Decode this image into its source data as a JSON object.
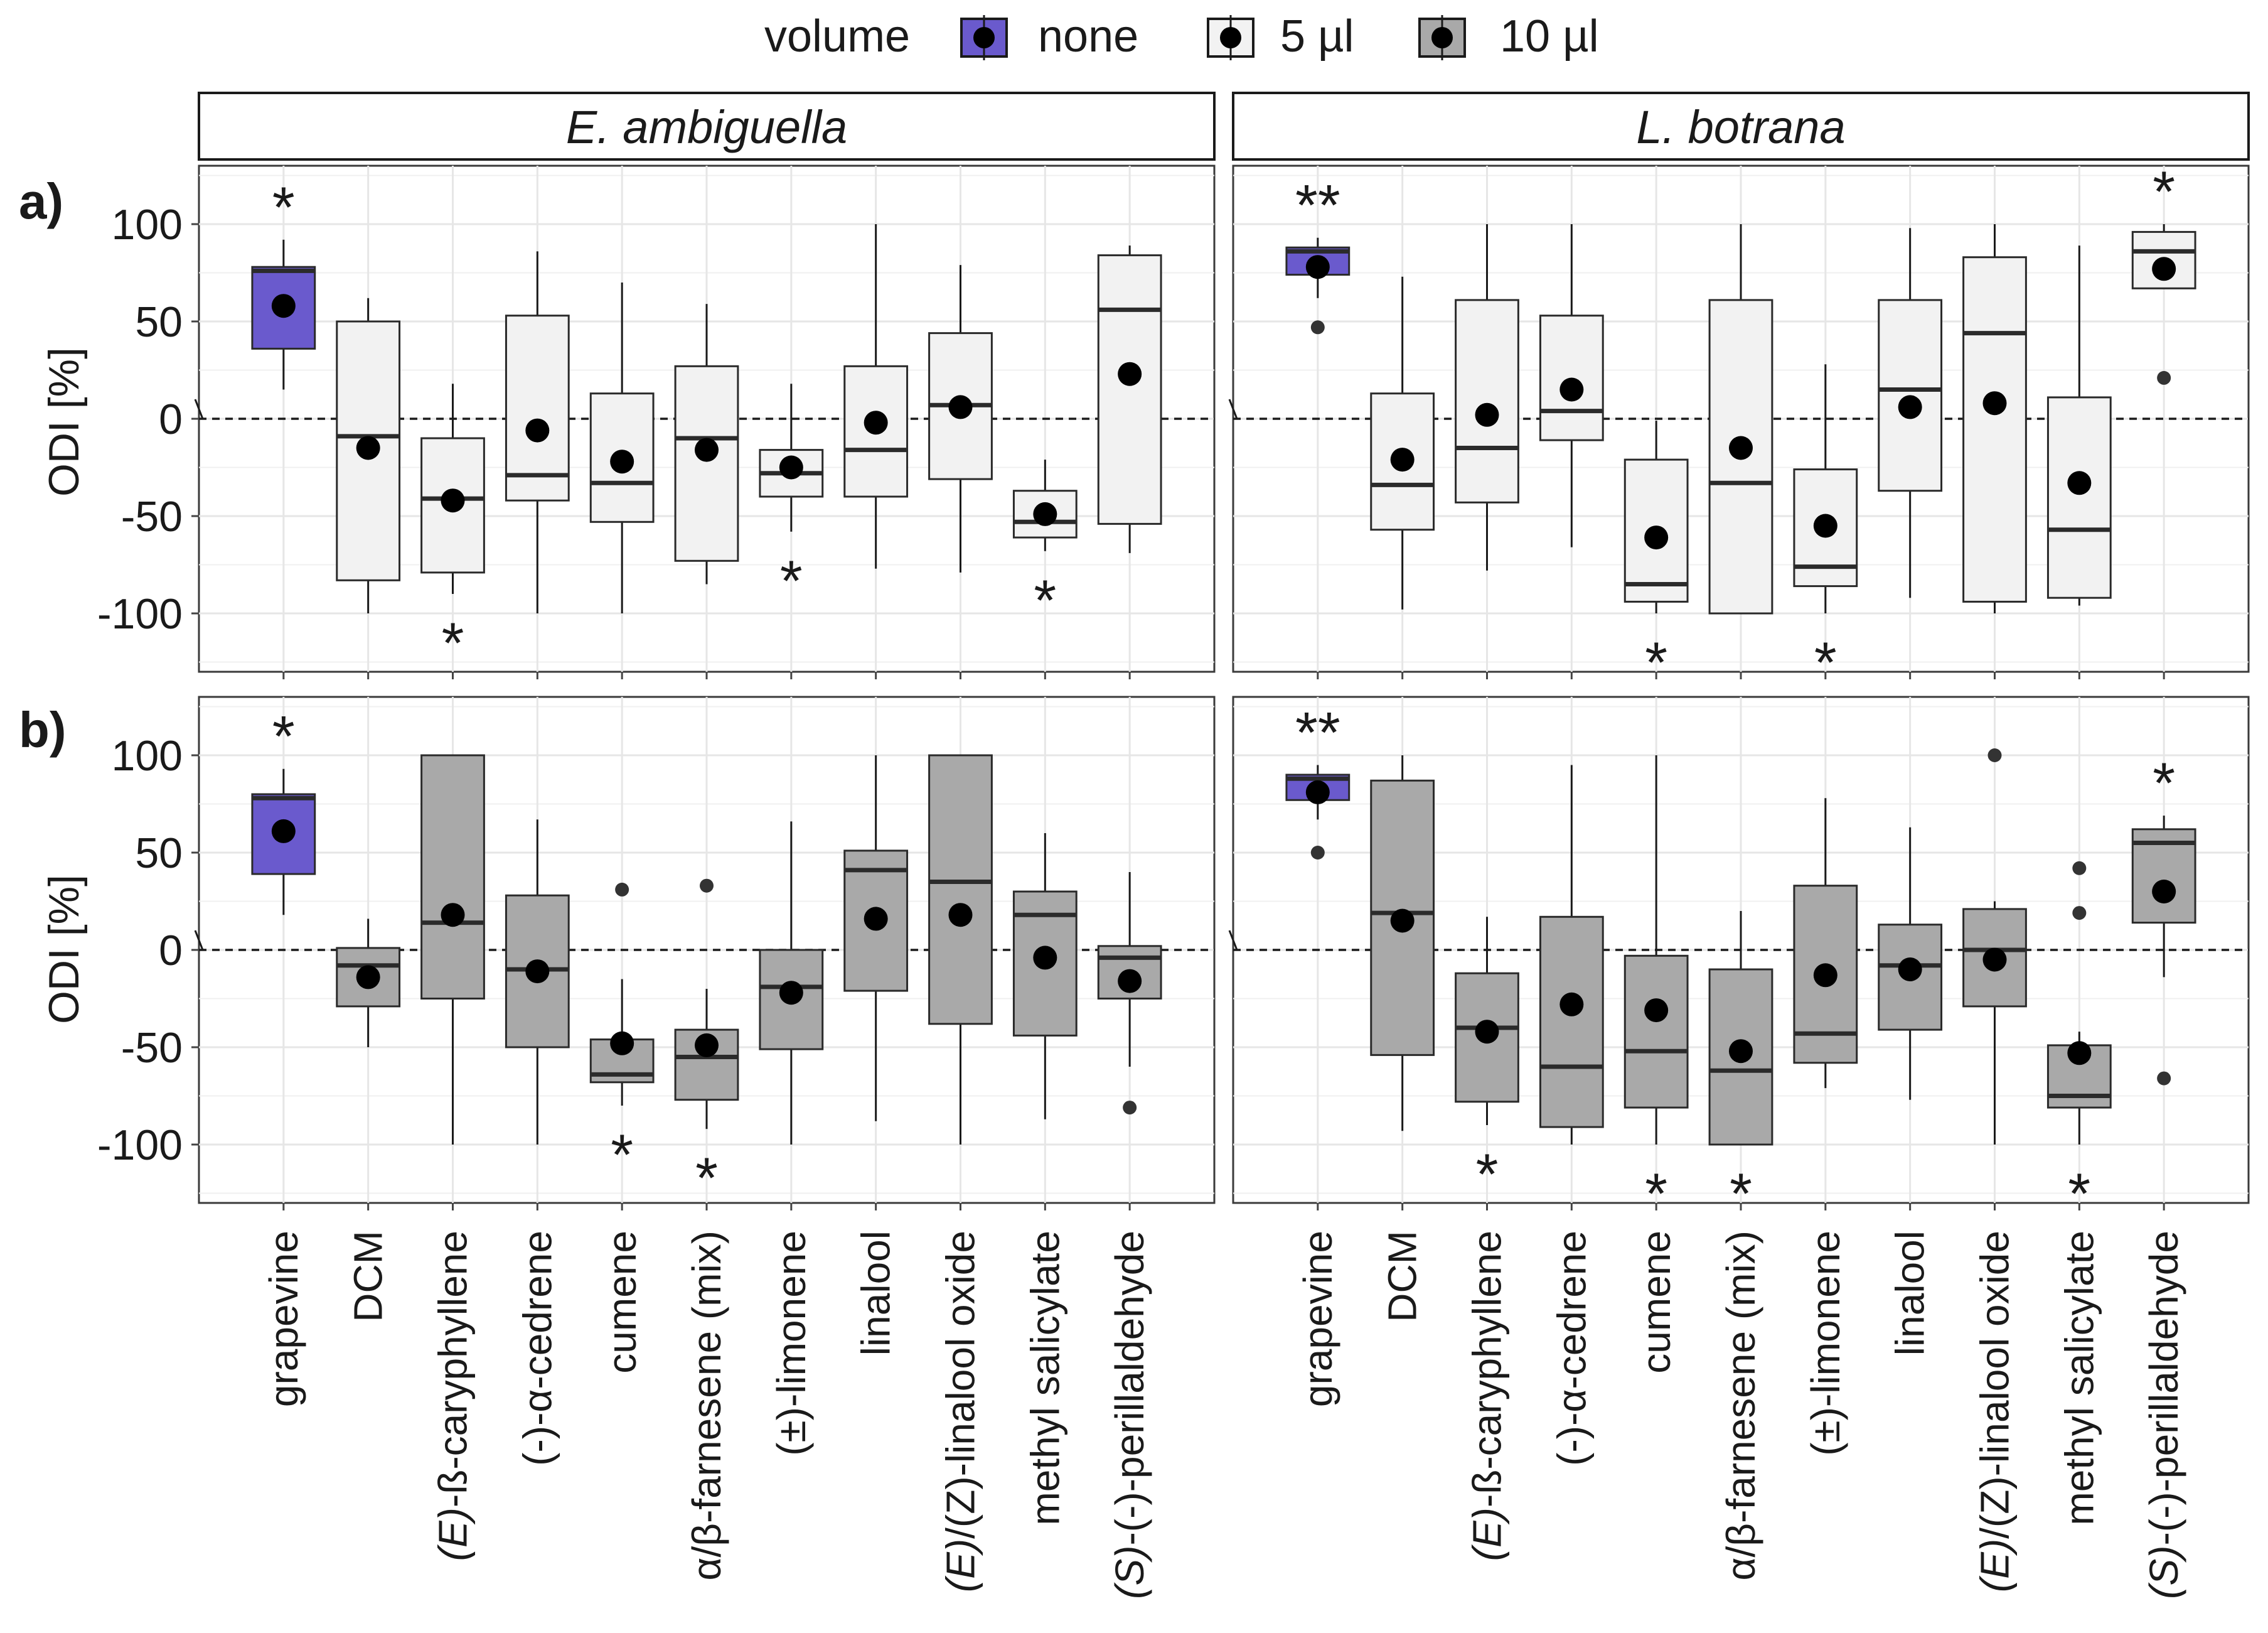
{
  "legend": {
    "title": "volume",
    "items": [
      {
        "label": "none",
        "color": "#6a5acd"
      },
      {
        "label": "5 µl",
        "color": "#f2f2f2"
      },
      {
        "label": "10 µl",
        "color": "#a9a9a9"
      }
    ]
  },
  "y_axis_label": "ODI [%]",
  "chart_data": {
    "type": "boxplot",
    "ylim": [
      -130,
      130
    ],
    "yticks": [
      100,
      50,
      0,
      -50,
      -100
    ],
    "categories": [
      "grapevine",
      "DCM",
      "(E)-ß-caryphyllene",
      "(-)-α-cedrene",
      "cumene",
      "α/β-farnesene (mix)",
      "(±)-limonene",
      "linalool",
      "(E)/(Z)-linalool oxide",
      "methyl salicylate",
      "(S)-(-)-perillaldehyde"
    ],
    "category_italic_prefix": [
      "",
      "",
      "E",
      "",
      "",
      "",
      "",
      "",
      "E/Z",
      "",
      "S"
    ],
    "column_titles": [
      "E. ambiguella",
      "L. botrana"
    ],
    "row_labels": [
      "a)",
      "b)"
    ],
    "panels": [
      {
        "row": 0,
        "col": 0,
        "species": "E. ambiguella",
        "dose": "5 µl",
        "boxes": [
          {
            "category": "grapevine",
            "volume": "none",
            "min": 15,
            "q1": 36,
            "median": 76,
            "q3": 78,
            "max": 92,
            "mean": 58,
            "outliers": [],
            "sig": "*",
            "sig_pos": "top"
          },
          {
            "category": "DCM",
            "volume": "5 µl",
            "min": -100,
            "q1": -83,
            "median": -9,
            "q3": 50,
            "max": 62,
            "mean": -15,
            "outliers": [],
            "sig": "",
            "sig_pos": ""
          },
          {
            "category": "(E)-ß-caryphyllene",
            "volume": "5 µl",
            "min": -90,
            "q1": -79,
            "median": -41,
            "q3": -10,
            "max": 18,
            "mean": -42,
            "outliers": [],
            "sig": "*",
            "sig_pos": "bottom"
          },
          {
            "category": "(-)-α-cedrene",
            "volume": "5 µl",
            "min": -100,
            "q1": -42,
            "median": -29,
            "q3": 53,
            "max": 86,
            "mean": -6,
            "outliers": [],
            "sig": "",
            "sig_pos": ""
          },
          {
            "category": "cumene",
            "volume": "5 µl",
            "min": -100,
            "q1": -53,
            "median": -33,
            "q3": 13,
            "max": 70,
            "mean": -22,
            "outliers": [],
            "sig": "",
            "sig_pos": ""
          },
          {
            "category": "α/β-farnesene (mix)",
            "volume": "5 µl",
            "min": -85,
            "q1": -73,
            "median": -10,
            "q3": 27,
            "max": 59,
            "mean": -16,
            "outliers": [],
            "sig": "",
            "sig_pos": ""
          },
          {
            "category": "(±)-limonene",
            "volume": "5 µl",
            "min": -58,
            "q1": -40,
            "median": -28,
            "q3": -16,
            "max": 18,
            "mean": -25,
            "outliers": [],
            "sig": "*",
            "sig_pos": "bottom"
          },
          {
            "category": "linalool",
            "volume": "5 µl",
            "min": -77,
            "q1": -40,
            "median": -16,
            "q3": 27,
            "max": 100,
            "mean": -2,
            "outliers": [],
            "sig": "",
            "sig_pos": ""
          },
          {
            "category": "(E)/(Z)-linalool oxide",
            "volume": "5 µl",
            "min": -79,
            "q1": -31,
            "median": 7,
            "q3": 44,
            "max": 79,
            "mean": 6,
            "outliers": [],
            "sig": "",
            "sig_pos": ""
          },
          {
            "category": "methyl salicylate",
            "volume": "5 µl",
            "min": -68,
            "q1": -61,
            "median": -53,
            "q3": -37,
            "max": -21,
            "mean": -49,
            "outliers": [],
            "sig": "*",
            "sig_pos": "bottom"
          },
          {
            "category": "(S)-(-)-perillaldehyde",
            "volume": "5 µl",
            "min": -69,
            "q1": -54,
            "median": 56,
            "q3": 84,
            "max": 89,
            "mean": 23,
            "outliers": [],
            "sig": "",
            "sig_pos": ""
          }
        ]
      },
      {
        "row": 0,
        "col": 1,
        "species": "L. botrana",
        "dose": "5 µl",
        "boxes": [
          {
            "category": "grapevine",
            "volume": "none",
            "min": 62,
            "q1": 74,
            "median": 86,
            "q3": 88,
            "max": 93,
            "mean": 78,
            "outliers": [
              47
            ],
            "sig": "**",
            "sig_pos": "top"
          },
          {
            "category": "DCM",
            "volume": "5 µl",
            "min": -98,
            "q1": -57,
            "median": -34,
            "q3": 13,
            "max": 73,
            "mean": -21,
            "outliers": [],
            "sig": "",
            "sig_pos": ""
          },
          {
            "category": "(E)-ß-caryphyllene",
            "volume": "5 µl",
            "min": -78,
            "q1": -43,
            "median": -15,
            "q3": 61,
            "max": 100,
            "mean": 2,
            "outliers": [],
            "sig": "",
            "sig_pos": ""
          },
          {
            "category": "(-)-α-cedrene",
            "volume": "5 µl",
            "min": -66,
            "q1": -11,
            "median": 4,
            "q3": 53,
            "max": 100,
            "mean": 15,
            "outliers": [],
            "sig": "",
            "sig_pos": ""
          },
          {
            "category": "cumene",
            "volume": "5 µl",
            "min": -100,
            "q1": -94,
            "median": -85,
            "q3": -21,
            "max": -1,
            "mean": -61,
            "outliers": [],
            "sig": "*",
            "sig_pos": "bottom"
          },
          {
            "category": "α/β-farnesene (mix)",
            "volume": "5 µl",
            "min": -100,
            "q1": -100,
            "median": -33,
            "q3": 61,
            "max": 100,
            "mean": -15,
            "outliers": [],
            "sig": "",
            "sig_pos": ""
          },
          {
            "category": "(±)-limonene",
            "volume": "5 µl",
            "min": -100,
            "q1": -86,
            "median": -76,
            "q3": -26,
            "max": 28,
            "mean": -55,
            "outliers": [],
            "sig": "*",
            "sig_pos": "bottom"
          },
          {
            "category": "linalool",
            "volume": "5 µl",
            "min": -92,
            "q1": -37,
            "median": 15,
            "q3": 61,
            "max": 98,
            "mean": 6,
            "outliers": [],
            "sig": "",
            "sig_pos": ""
          },
          {
            "category": "(E)/(Z)-linalool oxide",
            "volume": "5 µl",
            "min": -100,
            "q1": -94,
            "median": 44,
            "q3": 83,
            "max": 100,
            "mean": 8,
            "outliers": [],
            "sig": "",
            "sig_pos": ""
          },
          {
            "category": "methyl salicylate",
            "volume": "5 µl",
            "min": -96,
            "q1": -92,
            "median": -57,
            "q3": 11,
            "max": 89,
            "mean": -33,
            "outliers": [],
            "sig": "",
            "sig_pos": ""
          },
          {
            "category": "(S)-(-)-perillaldehyde",
            "volume": "5 µl",
            "min": 67,
            "q1": 67,
            "median": 86,
            "q3": 96,
            "max": 100,
            "mean": 77,
            "outliers": [
              21
            ],
            "sig": "*",
            "sig_pos": "top"
          }
        ]
      },
      {
        "row": 1,
        "col": 0,
        "species": "E. ambiguella",
        "dose": "10 µl",
        "boxes": [
          {
            "category": "grapevine",
            "volume": "none",
            "min": 18,
            "q1": 39,
            "median": 78,
            "q3": 80,
            "max": 93,
            "mean": 61,
            "outliers": [],
            "sig": "*",
            "sig_pos": "top"
          },
          {
            "category": "DCM",
            "volume": "10 µl",
            "min": -50,
            "q1": -29,
            "median": -8,
            "q3": 1,
            "max": 16,
            "mean": -14,
            "outliers": [],
            "sig": "",
            "sig_pos": ""
          },
          {
            "category": "(E)-ß-caryphyllene",
            "volume": "10 µl",
            "min": -100,
            "q1": -25,
            "median": 14,
            "q3": 100,
            "max": 100,
            "mean": 18,
            "outliers": [],
            "sig": "",
            "sig_pos": ""
          },
          {
            "category": "(-)-α-cedrene",
            "volume": "10 µl",
            "min": -100,
            "q1": -50,
            "median": -10,
            "q3": 28,
            "max": 67,
            "mean": -11,
            "outliers": [],
            "sig": "",
            "sig_pos": ""
          },
          {
            "category": "cumene",
            "volume": "10 µl",
            "min": -80,
            "q1": -68,
            "median": -64,
            "q3": -46,
            "max": -15,
            "mean": -48,
            "outliers": [
              31
            ],
            "sig": "*",
            "sig_pos": "bottom"
          },
          {
            "category": "α/β-farnesene (mix)",
            "volume": "10 µl",
            "min": -92,
            "q1": -77,
            "median": -55,
            "q3": -41,
            "max": -20,
            "mean": -49,
            "outliers": [
              33
            ],
            "sig": "*",
            "sig_pos": "bottom"
          },
          {
            "category": "(±)-limonene",
            "volume": "10 µl",
            "min": -100,
            "q1": -51,
            "median": -19,
            "q3": 0,
            "max": 66,
            "mean": -22,
            "outliers": [],
            "sig": "",
            "sig_pos": ""
          },
          {
            "category": "linalool",
            "volume": "10 µl",
            "min": -88,
            "q1": -21,
            "median": 41,
            "q3": 51,
            "max": 100,
            "mean": 16,
            "outliers": [],
            "sig": "",
            "sig_pos": ""
          },
          {
            "category": "(E)/(Z)-linalool oxide",
            "volume": "10 µl",
            "min": -100,
            "q1": -38,
            "median": 35,
            "q3": 100,
            "max": 100,
            "mean": 18,
            "outliers": [],
            "sig": "",
            "sig_pos": ""
          },
          {
            "category": "methyl salicylate",
            "volume": "10 µl",
            "min": -87,
            "q1": -44,
            "median": 18,
            "q3": 30,
            "max": 60,
            "mean": -4,
            "outliers": [],
            "sig": "",
            "sig_pos": ""
          },
          {
            "category": "(S)-(-)-perillaldehyde",
            "volume": "10 µl",
            "min": -60,
            "q1": -25,
            "median": -4,
            "q3": 2,
            "max": 40,
            "mean": -16,
            "outliers": [
              -81
            ],
            "sig": "",
            "sig_pos": ""
          }
        ]
      },
      {
        "row": 1,
        "col": 1,
        "species": "L. botrana",
        "dose": "10 µl",
        "boxes": [
          {
            "category": "grapevine",
            "volume": "none",
            "min": 67,
            "q1": 77,
            "median": 88,
            "q3": 90,
            "max": 95,
            "mean": 81,
            "outliers": [
              50
            ],
            "sig": "**",
            "sig_pos": "top"
          },
          {
            "category": "DCM",
            "volume": "10 µl",
            "min": -93,
            "q1": -54,
            "median": 19,
            "q3": 87,
            "max": 100,
            "mean": 15,
            "outliers": [],
            "sig": "",
            "sig_pos": ""
          },
          {
            "category": "(E)-ß-caryphyllene",
            "volume": "10 µl",
            "min": -90,
            "q1": -78,
            "median": -40,
            "q3": -12,
            "max": 17,
            "mean": -42,
            "outliers": [],
            "sig": "*",
            "sig_pos": "bottom"
          },
          {
            "category": "(-)-α-cedrene",
            "volume": "10 µl",
            "min": -100,
            "q1": -91,
            "median": -60,
            "q3": 17,
            "max": 95,
            "mean": -28,
            "outliers": [],
            "sig": "",
            "sig_pos": ""
          },
          {
            "category": "cumene",
            "volume": "10 µl",
            "min": -100,
            "q1": -81,
            "median": -52,
            "q3": -3,
            "max": 100,
            "mean": -31,
            "outliers": [],
            "sig": "*",
            "sig_pos": "bottom"
          },
          {
            "category": "α/β-farnesene (mix)",
            "volume": "10 µl",
            "min": -100,
            "q1": -100,
            "median": -62,
            "q3": -10,
            "max": 20,
            "mean": -52,
            "outliers": [],
            "sig": "*",
            "sig_pos": "bottom"
          },
          {
            "category": "(±)-limonene",
            "volume": "10 µl",
            "min": -71,
            "q1": -58,
            "median": -43,
            "q3": 33,
            "max": 78,
            "mean": -13,
            "outliers": [],
            "sig": "",
            "sig_pos": ""
          },
          {
            "category": "linalool",
            "volume": "10 µl",
            "min": -77,
            "q1": -41,
            "median": -8,
            "q3": 13,
            "max": 63,
            "mean": -10,
            "outliers": [],
            "sig": "",
            "sig_pos": ""
          },
          {
            "category": "(E)/(Z)-linalool oxide",
            "volume": "10 µl",
            "min": -100,
            "q1": -29,
            "median": 0,
            "q3": 21,
            "max": 25,
            "mean": -5,
            "outliers": [
              100
            ],
            "sig": "",
            "sig_pos": ""
          },
          {
            "category": "methyl salicylate",
            "volume": "10 µl",
            "min": -100,
            "q1": -81,
            "median": -75,
            "q3": -49,
            "max": -42,
            "mean": -53,
            "outliers": [
              42,
              19
            ],
            "sig": "*",
            "sig_pos": "bottom"
          },
          {
            "category": "(S)-(-)-perillaldehyde",
            "volume": "10 µl",
            "min": -14,
            "q1": 14,
            "median": 55,
            "q3": 62,
            "max": 69,
            "mean": 30,
            "outliers": [
              -66
            ],
            "sig": "*",
            "sig_pos": "top"
          }
        ]
      }
    ]
  }
}
